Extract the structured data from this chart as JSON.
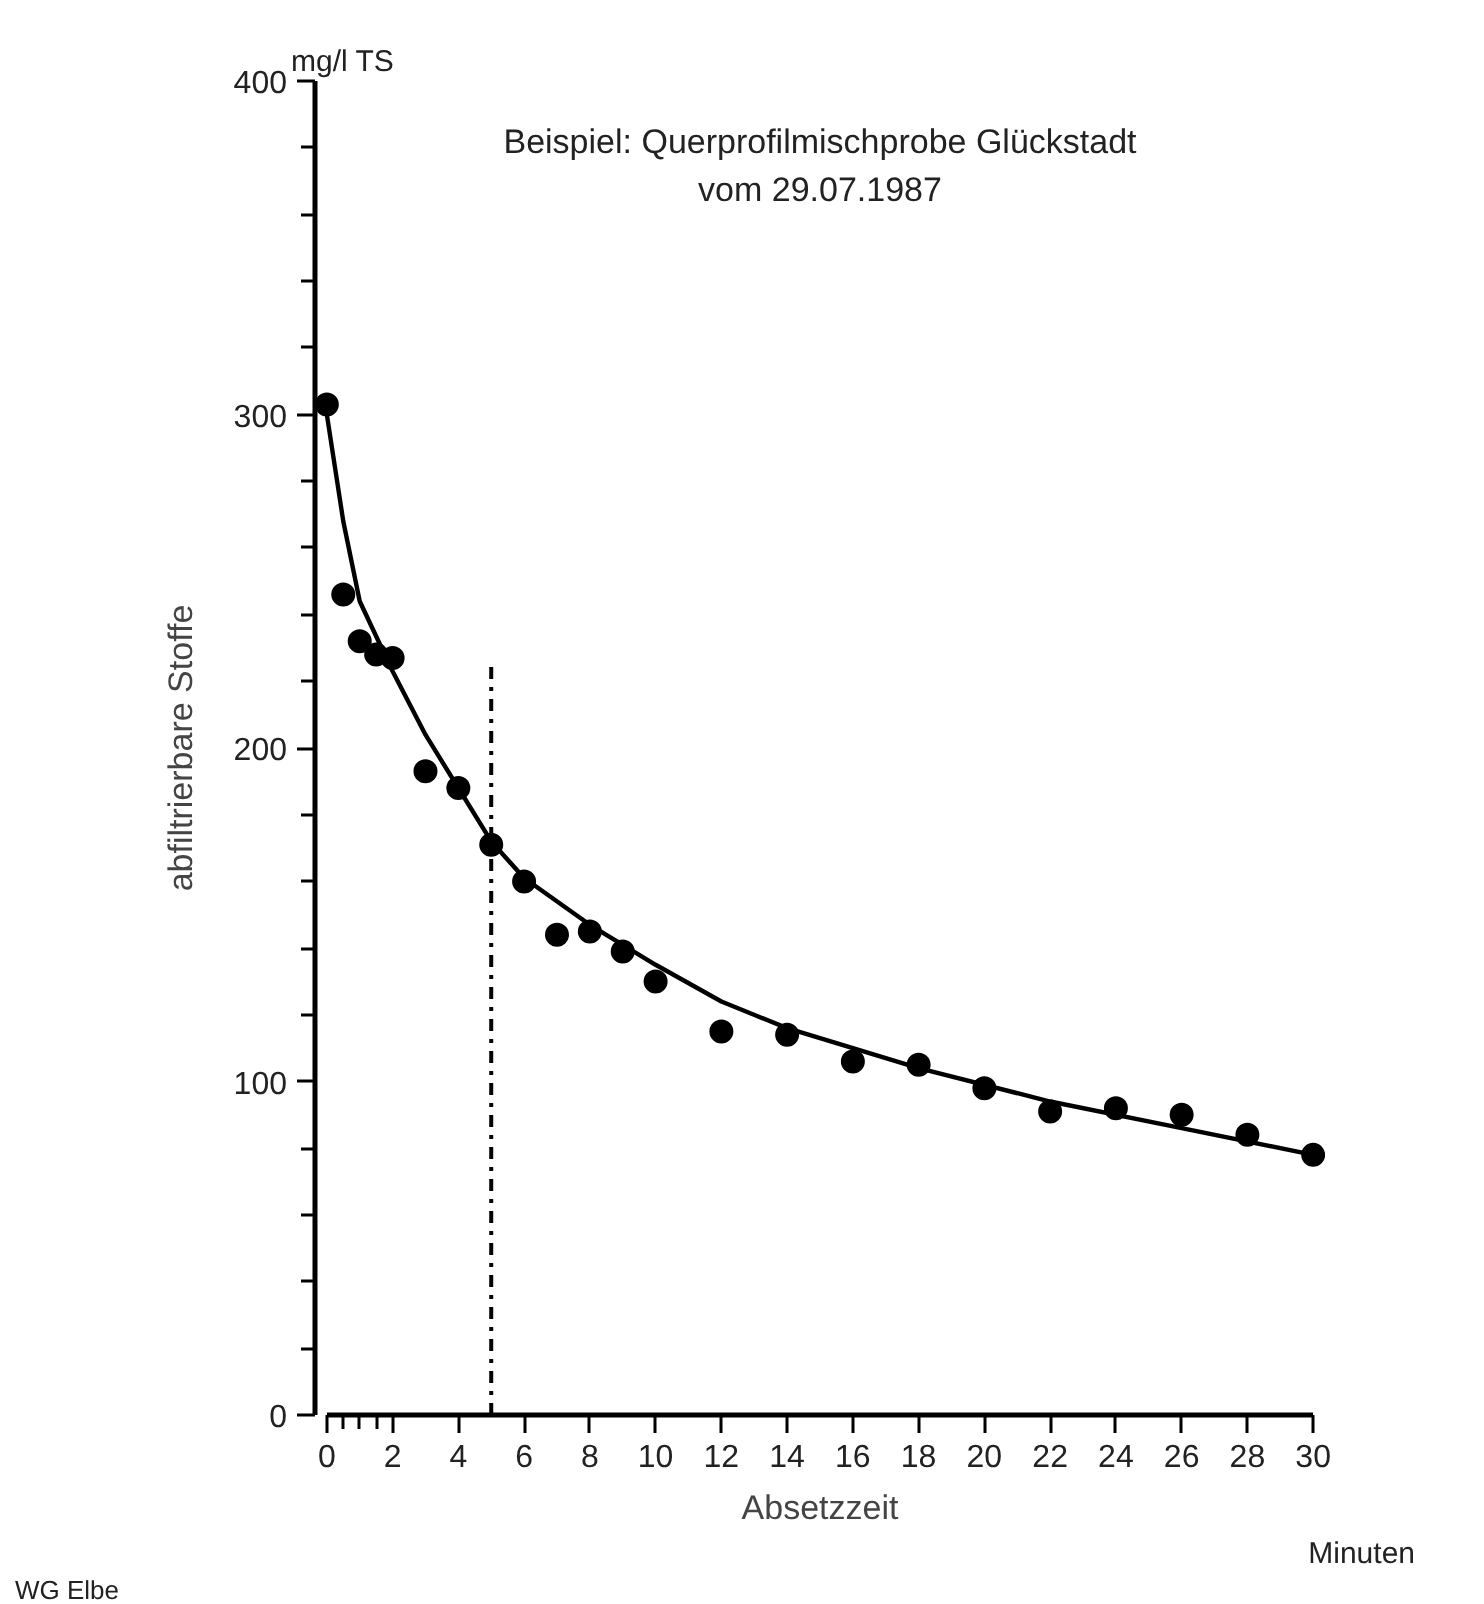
{
  "chart_data": {
    "type": "scatter",
    "title": "Beispiel: Querprofilmischprobe Glückstadt",
    "subtitle": "vom 29.07.1987",
    "xlabel": "Absetzzeit",
    "ylabel": "abfiltrierbare Stoffe",
    "annotations": [
      "mg/l TS",
      "Minuten",
      "WG Elbe"
    ],
    "x": [
      0,
      0.5,
      1,
      1.5,
      2,
      3,
      4,
      5,
      6,
      7,
      8,
      9,
      10,
      12,
      14,
      16,
      18,
      20,
      22,
      24,
      26,
      28,
      30
    ],
    "series": [
      {
        "color": "#000000",
        "marker": "circle",
        "values": [
          303,
          246,
          232,
          228,
          227,
          193,
          188,
          171,
          160,
          144,
          145,
          139,
          130,
          115,
          114,
          106,
          105,
          98,
          91,
          92,
          90,
          84,
          78
        ]
      },
      {
        "type": "line",
        "color": "#000000",
        "line_style": "solid",
        "x": [
          0,
          0.5,
          1,
          2,
          3,
          4,
          5,
          6,
          8,
          10,
          12,
          14,
          18,
          22,
          26,
          30
        ],
        "values": [
          300,
          268,
          244,
          223,
          204,
          188,
          172,
          161,
          147,
          135,
          124,
          116,
          104,
          94,
          86,
          78
        ]
      }
    ],
    "ref_lines": [
      {
        "axis": "x",
        "value": 5,
        "label": null,
        "color": "#000000",
        "line_style": "dashdot"
      }
    ],
    "xlim": [
      0,
      30
    ],
    "ylim": [
      0,
      400
    ],
    "xticks": [
      0,
      {
        "value": 0.5,
        "label": null
      },
      {
        "value": 1,
        "label": null
      },
      {
        "value": 1.5,
        "label": null
      },
      2,
      4,
      6,
      8,
      10,
      12,
      14,
      16,
      18,
      20,
      22,
      24,
      26,
      28,
      30
    ],
    "yticks": [
      0,
      {
        "value": 20,
        "label": null
      },
      {
        "value": 40,
        "label": null
      },
      {
        "value": 60,
        "label": null
      },
      {
        "value": 80,
        "label": null
      },
      100,
      {
        "value": 120,
        "label": null
      },
      {
        "value": 140,
        "label": null
      },
      {
        "value": 160,
        "label": null
      },
      {
        "value": 180,
        "label": null
      },
      200,
      {
        "value": 220,
        "label": null
      },
      {
        "value": 240,
        "label": null
      },
      {
        "value": 260,
        "label": null
      },
      {
        "value": 280,
        "label": null
      },
      300,
      {
        "value": 320,
        "label": null
      },
      {
        "value": 340,
        "label": null
      },
      {
        "value": 360,
        "label": null
      },
      {
        "value": 380,
        "label": null
      },
      400
    ],
    "grid": false
  }
}
